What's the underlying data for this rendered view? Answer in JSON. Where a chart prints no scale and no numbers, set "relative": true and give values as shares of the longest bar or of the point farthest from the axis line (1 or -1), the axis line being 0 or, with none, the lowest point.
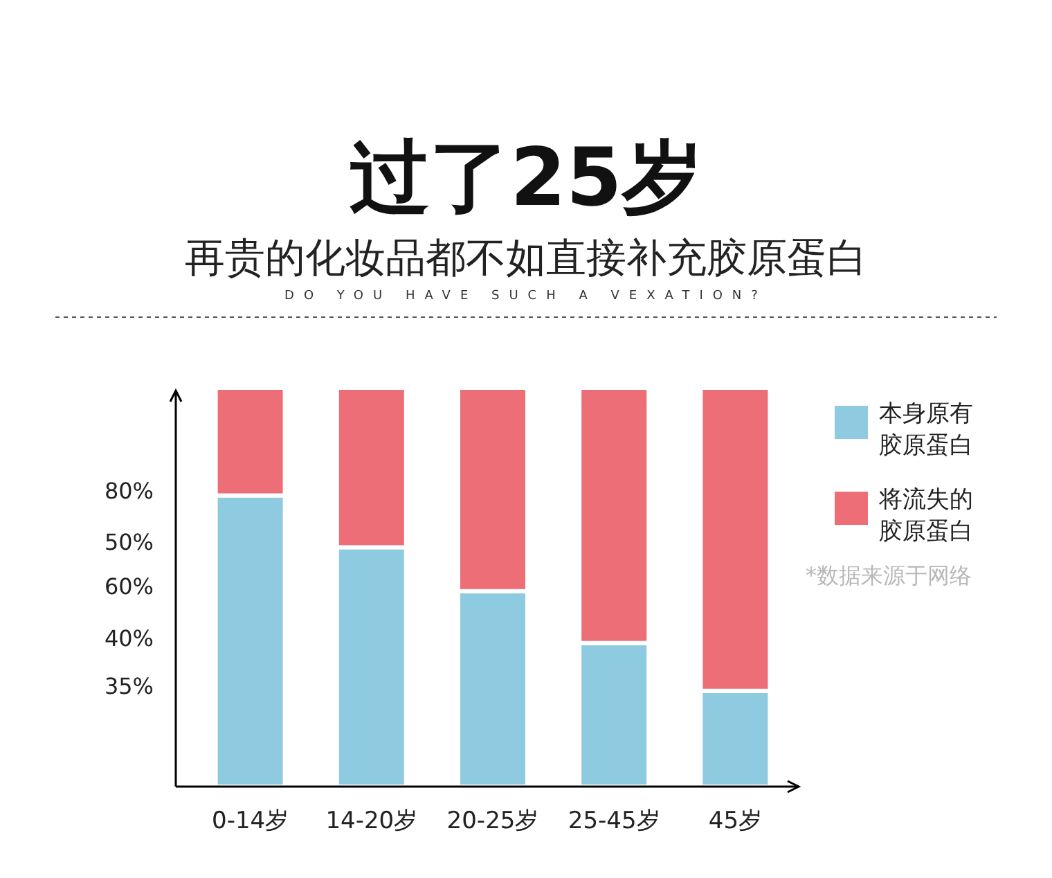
{
  "chart_data": {
    "type": "bar",
    "title": "过了25岁",
    "subtitle": "再贵的化妆品都不如直接补充胶原蛋白",
    "annotations": [
      "DO YOU HAVE SUCH A VEXATION?",
      "*数据来源于网络",
      "80%",
      "50%",
      "60%",
      "40%",
      "35%"
    ],
    "categories": [
      "0-14岁",
      "14-20岁",
      "20-25岁",
      "25-45岁",
      "45岁"
    ],
    "stacked": true,
    "relative": true,
    "legend": "right",
    "series": [
      {
        "name": "本身原有胶原蛋白",
        "color": "#8ecae0",
        "values": [
          0.73,
          0.6,
          0.49,
          0.36,
          0.24
        ]
      },
      {
        "name": "将流失的胶原蛋白",
        "color": "#ee6e78",
        "values": [
          0.27,
          0.4,
          0.51,
          0.64,
          0.76
        ]
      }
    ]
  }
}
